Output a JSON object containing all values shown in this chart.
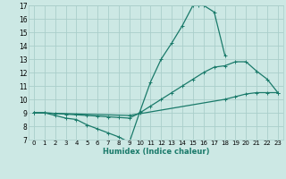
{
  "bg_color": "#cce8e4",
  "line_color": "#1a7a6a",
  "grid_color": "#aaceca",
  "xlabel": "Humidex (Indice chaleur)",
  "xlim": [
    -0.5,
    23.5
  ],
  "ylim": [
    7,
    17
  ],
  "yticks": [
    7,
    8,
    9,
    10,
    11,
    12,
    13,
    14,
    15,
    16,
    17
  ],
  "xticks": [
    0,
    1,
    2,
    3,
    4,
    5,
    6,
    7,
    8,
    9,
    10,
    11,
    12,
    13,
    14,
    15,
    16,
    17,
    18,
    19,
    20,
    21,
    22,
    23
  ],
  "line1_x": [
    0,
    1,
    2,
    3,
    4,
    5,
    6,
    7,
    8,
    9,
    10,
    11,
    12,
    13,
    14,
    15,
    15.5,
    16,
    17,
    18
  ],
  "line1_y": [
    9.0,
    9.0,
    8.8,
    8.6,
    8.5,
    8.1,
    7.8,
    7.5,
    7.2,
    6.8,
    9.1,
    11.3,
    13.0,
    14.2,
    15.5,
    17.0,
    17.0,
    17.0,
    16.5,
    13.3
  ],
  "line2_x": [
    0,
    1,
    2,
    3,
    4,
    5,
    6,
    7,
    8,
    9,
    10,
    11,
    12,
    13,
    14,
    15,
    16,
    17,
    18,
    19,
    20,
    21,
    22,
    23
  ],
  "line2_y": [
    9.0,
    9.0,
    8.95,
    8.9,
    8.85,
    8.8,
    8.75,
    8.7,
    8.65,
    8.6,
    9.0,
    9.5,
    10.0,
    10.5,
    11.0,
    11.5,
    12.0,
    12.4,
    12.5,
    12.8,
    12.8,
    12.1,
    11.5,
    10.5
  ],
  "line3_x": [
    0,
    9,
    18,
    19,
    20,
    21,
    22,
    23
  ],
  "line3_y": [
    9.0,
    8.8,
    10.0,
    10.2,
    10.4,
    10.5,
    10.5,
    10.5
  ]
}
